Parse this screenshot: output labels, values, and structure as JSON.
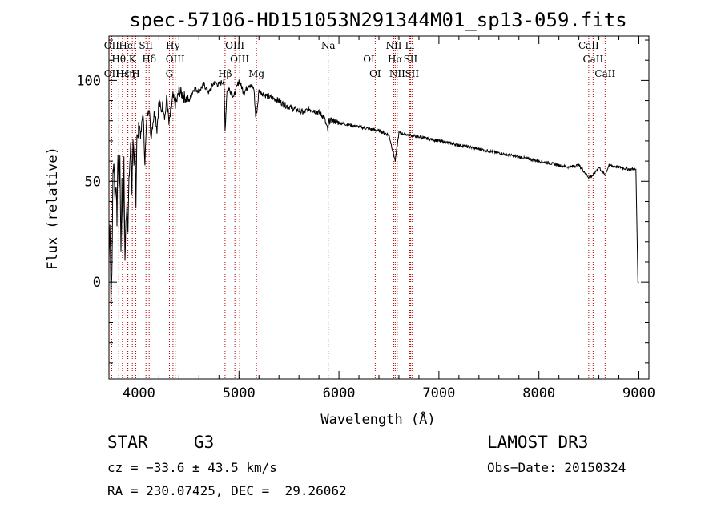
{
  "chart_data": {
    "type": "line",
    "title": "spec-57106-HD151053N291344M01_sp13-059.fits",
    "xlabel": "Wavelength (Å)",
    "ylabel": "Flux (relative)",
    "xlim": [
      3700,
      9100
    ],
    "ylim": [
      -48,
      122
    ],
    "x_ticks": [
      4000,
      5000,
      6000,
      7000,
      8000,
      9000
    ],
    "y_ticks": [
      0,
      50,
      100
    ],
    "series": [
      {
        "name": "flux",
        "x": [
          3700,
          3710,
          3720,
          3730,
          3740,
          3750,
          3760,
          3770,
          3780,
          3790,
          3800,
          3810,
          3820,
          3830,
          3840,
          3850,
          3860,
          3870,
          3880,
          3890,
          3900,
          3910,
          3920,
          3930,
          3940,
          3950,
          3960,
          3970,
          3980,
          3990,
          4000,
          4020,
          4040,
          4060,
          4080,
          4100,
          4120,
          4140,
          4160,
          4180,
          4200,
          4220,
          4240,
          4260,
          4280,
          4300,
          4320,
          4340,
          4360,
          4380,
          4400,
          4450,
          4500,
          4550,
          4600,
          4650,
          4700,
          4750,
          4800,
          4850,
          4861,
          4880,
          4900,
          4950,
          5000,
          5050,
          5100,
          5150,
          5167,
          5183,
          5200,
          5250,
          5300,
          5350,
          5400,
          5450,
          5500,
          5550,
          5600,
          5650,
          5700,
          5750,
          5800,
          5850,
          5890,
          5900,
          5950,
          6000,
          6100,
          6200,
          6300,
          6400,
          6500,
          6563,
          6600,
          6700,
          6800,
          6900,
          7000,
          7100,
          7200,
          7300,
          7400,
          7500,
          7600,
          7700,
          7800,
          7900,
          8000,
          8100,
          8200,
          8300,
          8400,
          8498,
          8542,
          8600,
          8662,
          8700,
          8800,
          8900,
          8970,
          8990,
          9000
        ],
        "y": [
          10,
          30,
          -10,
          5,
          55,
          60,
          40,
          50,
          30,
          65,
          45,
          60,
          15,
          50,
          20,
          60,
          10,
          30,
          40,
          25,
          50,
          60,
          70,
          45,
          72,
          55,
          68,
          40,
          75,
          70,
          80,
          72,
          85,
          60,
          82,
          88,
          72,
          80,
          85,
          76,
          90,
          85,
          88,
          82,
          92,
          78,
          85,
          92,
          88,
          90,
          95,
          92,
          90,
          96,
          95,
          98,
          94,
          99,
          98,
          100,
          75,
          95,
          96,
          92,
          100,
          94,
          98,
          96,
          82,
          86,
          95,
          93,
          92,
          91,
          90,
          88,
          87,
          86,
          85,
          84,
          86,
          85,
          84,
          82,
          75,
          80,
          80,
          79,
          78,
          77,
          76,
          75,
          73,
          60,
          74,
          73,
          72,
          71,
          70,
          69,
          68,
          67,
          66,
          65,
          64,
          63,
          62,
          61,
          60,
          59,
          58,
          57,
          58,
          52,
          53,
          57,
          53,
          58,
          57,
          56,
          56,
          0,
          0
        ]
      }
    ],
    "spectral_lines": [
      {
        "label": "OII",
        "wavelength": 3727,
        "row": 2
      },
      {
        "label": "Hθ",
        "wavelength": 3798,
        "row": 1
      },
      {
        "label": "OII",
        "wavelength": 3727,
        "row": 0
      },
      {
        "label": "Hε",
        "wavelength": 3835,
        "row": 0
      },
      {
        "label": "K",
        "wavelength": 3934,
        "row": 1
      },
      {
        "label": "HeI",
        "wavelength": 3889,
        "row": 2
      },
      {
        "label": "Hη",
        "wavelength": 3889,
        "row": 0
      },
      {
        "label": "SII",
        "wavelength": 4070,
        "row": 2
      },
      {
        "label": "H",
        "wavelength": 3968,
        "row": 0
      },
      {
        "label": "Hδ",
        "wavelength": 4102,
        "row": 1
      },
      {
        "label": "OIII",
        "wavelength": 4363,
        "row": 1
      },
      {
        "label": "Hγ",
        "wavelength": 4340,
        "row": 2
      },
      {
        "label": "G",
        "wavelength": 4305,
        "row": 0
      },
      {
        "label": "OIII",
        "wavelength": 5007,
        "row": 1
      },
      {
        "label": "OIII",
        "wavelength": 4959,
        "row": 2
      },
      {
        "label": "Hβ",
        "wavelength": 4861,
        "row": 0
      },
      {
        "label": "Mg",
        "wavelength": 5175,
        "row": 0
      },
      {
        "label": "Na",
        "wavelength": 5893,
        "row": 2
      },
      {
        "label": "OI",
        "wavelength": 6300,
        "row": 1
      },
      {
        "label": "OI",
        "wavelength": 6363,
        "row": 0
      },
      {
        "label": "Hα",
        "wavelength": 6563,
        "row": 1
      },
      {
        "label": "SII",
        "wavelength": 6716,
        "row": 1
      },
      {
        "label": "NII",
        "wavelength": 6548,
        "row": 2
      },
      {
        "label": "Li",
        "wavelength": 6708,
        "row": 2
      },
      {
        "label": "NII",
        "wavelength": 6583,
        "row": 0
      },
      {
        "label": "SII",
        "wavelength": 6731,
        "row": 0
      },
      {
        "label": "CaII",
        "wavelength": 8542,
        "row": 1
      },
      {
        "label": "CaII",
        "wavelength": 8498,
        "row": 2
      },
      {
        "label": "CaII",
        "wavelength": 8662,
        "row": 0
      }
    ]
  },
  "info": {
    "class": "STAR",
    "subclass": "G3",
    "survey": "LAMOST DR3",
    "cz": "cz = −33.6 ± 43.5 km/s",
    "obs_date": "Obs−Date: 20150324",
    "coords": "RA = 230.07425, DEC =  29.26062"
  },
  "colors": {
    "line_marker": "#c00000",
    "spectrum": "#000000"
  }
}
